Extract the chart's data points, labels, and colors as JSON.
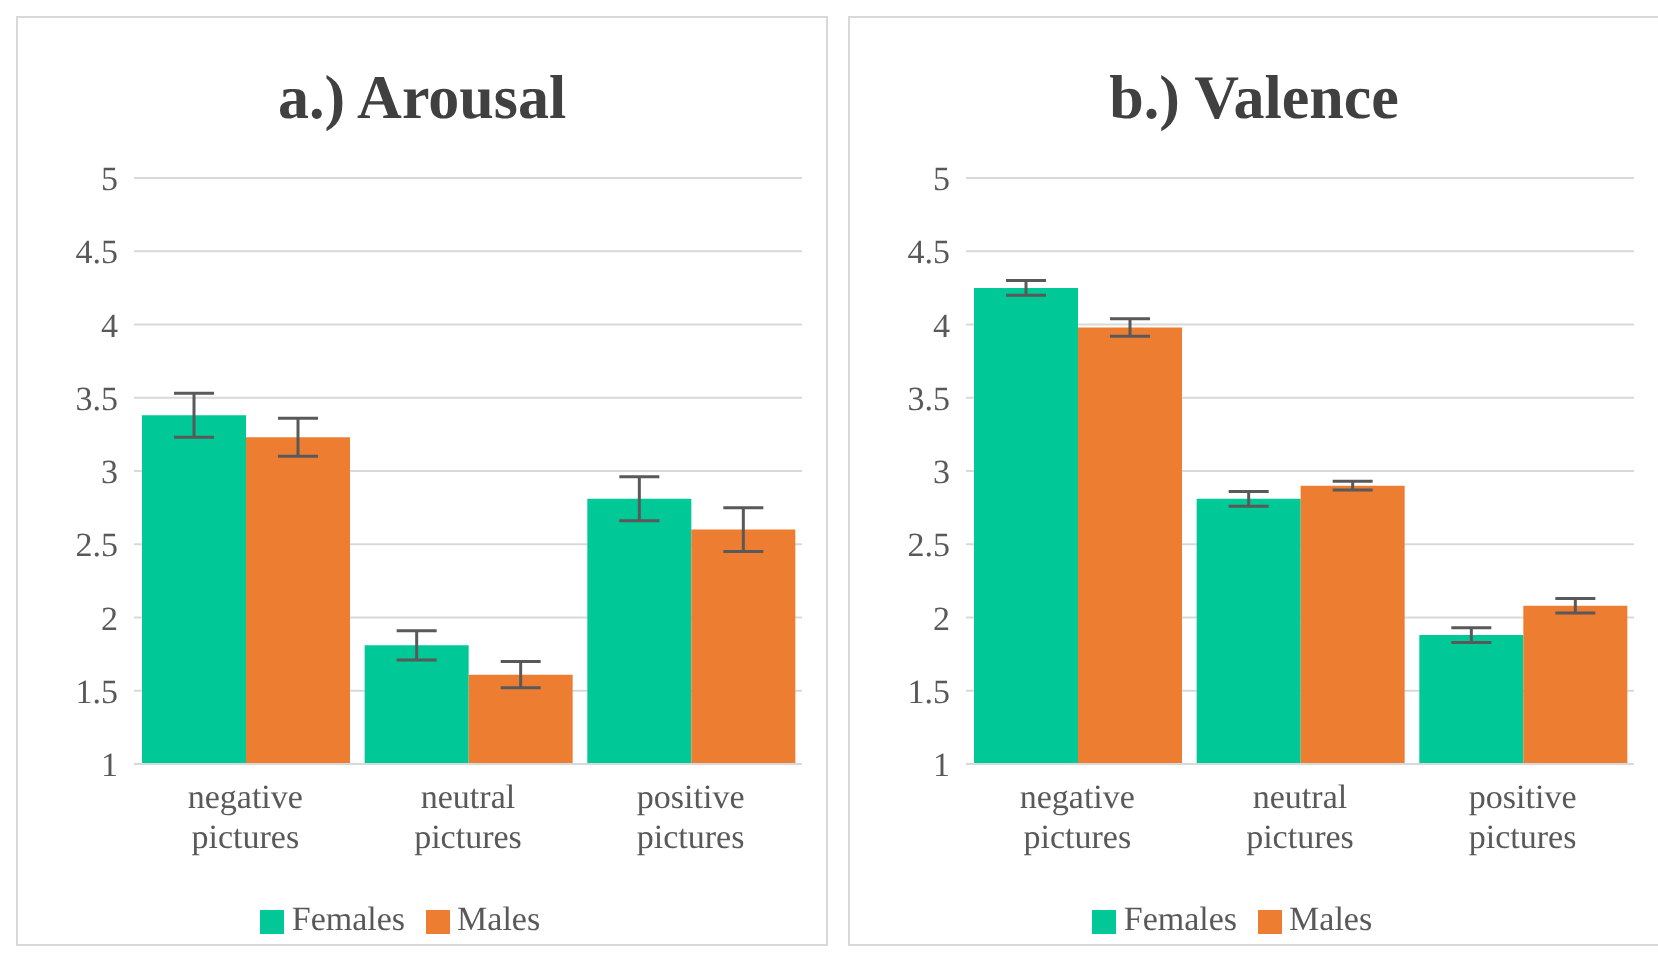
{
  "chart_data": [
    {
      "type": "bar",
      "title": "a.) Arousal",
      "categories": [
        "negative pictures",
        "neutral pictures",
        "positive pictures"
      ],
      "series": [
        {
          "name": "Females",
          "color": "#00c896",
          "values": [
            3.38,
            1.81,
            2.81
          ],
          "errors": [
            0.15,
            0.1,
            0.15
          ]
        },
        {
          "name": "Males",
          "color": "#ed7d31",
          "values": [
            3.23,
            1.61,
            2.6
          ],
          "errors": [
            0.13,
            0.09,
            0.15
          ]
        }
      ],
      "ylim": [
        1,
        5
      ],
      "yticks": [
        1,
        1.5,
        2,
        2.5,
        3,
        3.5,
        4,
        4.5,
        5
      ],
      "grid": "y",
      "legend": "bottom"
    },
    {
      "type": "bar",
      "title": "b.) Valence",
      "categories": [
        "negative pictures",
        "neutral pictures",
        "positive pictures"
      ],
      "series": [
        {
          "name": "Females",
          "color": "#00c896",
          "values": [
            4.25,
            2.81,
            1.88
          ],
          "errors": [
            0.05,
            0.05,
            0.05
          ]
        },
        {
          "name": "Males",
          "color": "#ed7d31",
          "values": [
            3.98,
            2.9,
            2.08
          ],
          "errors": [
            0.06,
            0.03,
            0.05
          ]
        }
      ],
      "ylim": [
        1,
        5
      ],
      "yticks": [
        1,
        1.5,
        2,
        2.5,
        3,
        3.5,
        4,
        4.5,
        5
      ],
      "grid": "y",
      "legend": "bottom"
    }
  ]
}
